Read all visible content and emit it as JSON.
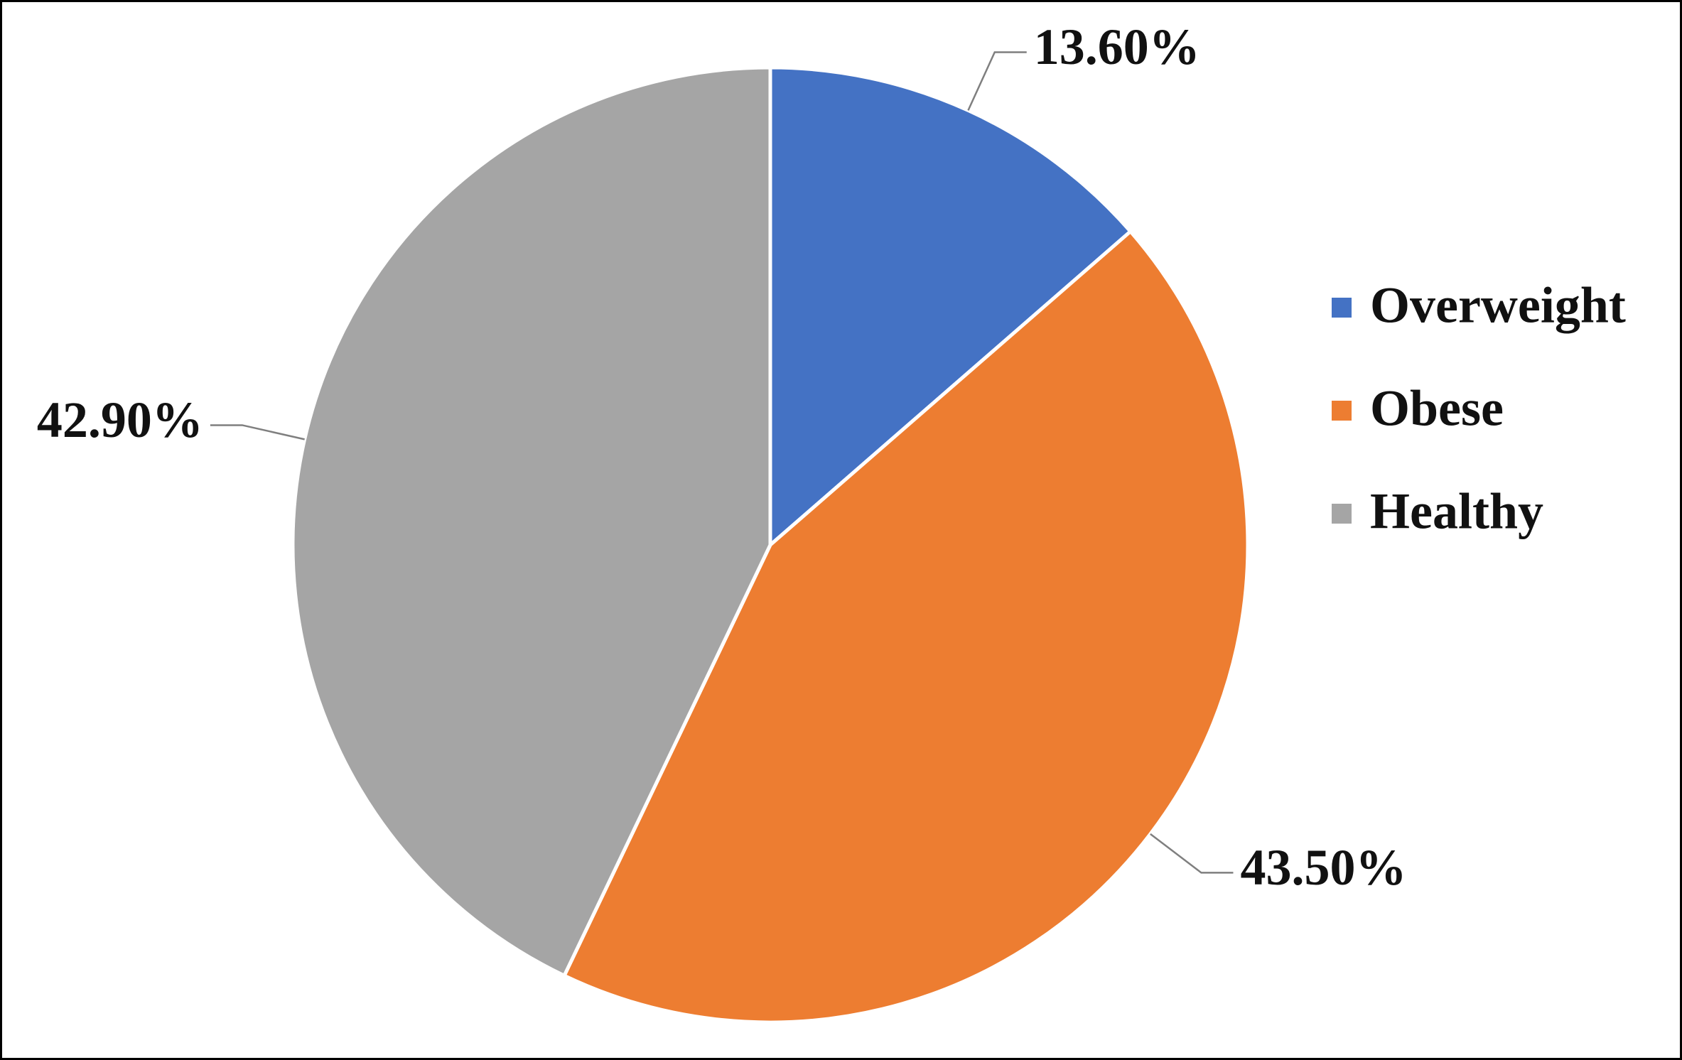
{
  "chart_data": {
    "type": "pie",
    "categories": [
      "Overweight",
      "Obese",
      "Healthy"
    ],
    "values": [
      13.6,
      43.5,
      42.9
    ],
    "value_labels": [
      "13.60%",
      "43.50%",
      "42.90%"
    ],
    "colors": [
      "#4472c4",
      "#ed7d31",
      "#a5a5a5"
    ],
    "legend": "right"
  }
}
